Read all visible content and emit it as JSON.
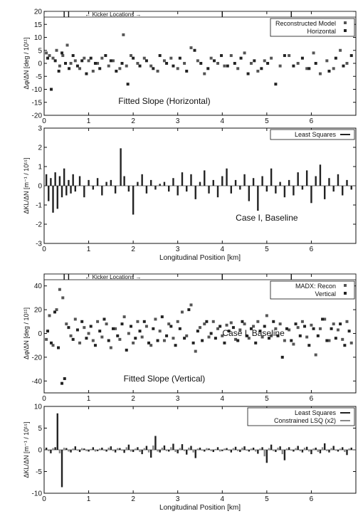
{
  "chart_data": [
    {
      "type": "scatter",
      "ylabel": "Δφ/ΔN [deg / 10¹¹]",
      "ylim": [
        -20,
        20
      ],
      "xlim": [
        0,
        7
      ],
      "yticks": [
        -20,
        -15,
        -10,
        -5,
        0,
        5,
        10,
        15,
        20
      ],
      "xticks": [
        0,
        1,
        2,
        3,
        4,
        5,
        6
      ],
      "kicker_label": "← Kicker Locations →",
      "legend": [
        "Reconstructed Model",
        "Horizontal"
      ],
      "legend_position": "top-right",
      "annotation": "Fitted Slope (Horizontal)",
      "series": [
        {
          "name": "Reconstructed Model",
          "x": [
            0.05,
            0.12,
            0.2,
            0.28,
            0.35,
            0.42,
            0.52,
            0.6,
            0.7,
            0.8,
            0.9,
            1.0,
            1.1,
            1.2,
            1.3,
            1.45,
            1.55,
            1.7,
            1.78,
            1.85,
            1.95,
            2.1,
            2.25,
            2.4,
            2.55,
            2.7,
            2.85,
            3.0,
            3.15,
            3.3,
            3.45,
            3.6,
            3.75,
            3.9,
            4.05,
            4.2,
            4.35,
            4.5,
            4.65,
            4.8,
            4.95,
            5.1,
            5.3,
            5.5,
            5.7,
            5.9,
            6.05,
            6.2,
            6.35,
            6.5,
            6.65,
            6.8
          ],
          "y": [
            4,
            3,
            2,
            5,
            -1,
            3,
            7,
            0,
            1,
            -2,
            2,
            1,
            -3,
            0,
            2,
            -1,
            1,
            -2,
            11,
            -1,
            3,
            0,
            2,
            -1,
            -3,
            1,
            2,
            -2,
            0,
            6,
            1,
            -4,
            2,
            0,
            -1,
            3,
            -2,
            4,
            0,
            -3,
            1,
            2,
            -1,
            3,
            0,
            -2,
            4,
            -4,
            1,
            -2,
            5,
            0
          ]
        },
        {
          "name": "Horizontal",
          "x": [
            0.08,
            0.16,
            0.25,
            0.33,
            0.4,
            0.48,
            0.56,
            0.65,
            0.75,
            0.85,
            0.95,
            1.05,
            1.15,
            1.25,
            1.38,
            1.5,
            1.62,
            1.75,
            1.88,
            2.0,
            2.15,
            2.3,
            2.45,
            2.6,
            2.75,
            2.9,
            3.05,
            3.2,
            3.38,
            3.52,
            3.68,
            3.82,
            3.98,
            4.12,
            4.28,
            4.42,
            4.58,
            4.72,
            4.88,
            5.02,
            5.2,
            5.4,
            5.6,
            5.8,
            5.95,
            6.1,
            6.25,
            6.4,
            6.55,
            6.72,
            6.9
          ],
          "y": [
            2,
            -10,
            1,
            -3,
            4,
            0,
            -2,
            3,
            -1,
            1,
            -4,
            2,
            0,
            -2,
            3,
            1,
            -3,
            0,
            -8,
            2,
            -1,
            1,
            -2,
            3,
            0,
            -1,
            2,
            -3,
            5,
            0,
            -2,
            1,
            3,
            -1,
            0,
            2,
            -4,
            1,
            -2,
            0,
            -8,
            3,
            -1,
            2,
            -2,
            0,
            11,
            -3,
            2,
            -1,
            3
          ]
        }
      ]
    },
    {
      "type": "bar",
      "ylabel": "ΔKL/ΔN [m⁻¹ / 10¹⁵]",
      "ylim": [
        -3,
        3
      ],
      "xlim": [
        0,
        7
      ],
      "yticks": [
        -3,
        -2,
        -1,
        0,
        1,
        2,
        3
      ],
      "xticks": [
        0,
        1,
        2,
        3,
        4,
        5,
        6
      ],
      "xlabel": "Longitudinal Position [km]",
      "legend": [
        "Least Squares"
      ],
      "legend_position": "top-right",
      "annotation": "Case I, Baseline",
      "series": [
        {
          "name": "Least Squares",
          "x": [
            0.05,
            0.1,
            0.15,
            0.2,
            0.25,
            0.3,
            0.35,
            0.4,
            0.45,
            0.5,
            0.55,
            0.6,
            0.65,
            0.7,
            0.8,
            0.9,
            1.0,
            1.1,
            1.2,
            1.3,
            1.4,
            1.5,
            1.6,
            1.72,
            1.8,
            1.9,
            2.0,
            2.1,
            2.2,
            2.3,
            2.4,
            2.5,
            2.6,
            2.7,
            2.8,
            2.9,
            3.0,
            3.1,
            3.2,
            3.3,
            3.4,
            3.5,
            3.6,
            3.7,
            3.8,
            3.9,
            4.0,
            4.1,
            4.2,
            4.3,
            4.4,
            4.5,
            4.6,
            4.7,
            4.8,
            4.9,
            5.0,
            5.1,
            5.2,
            5.3,
            5.4,
            5.5,
            5.6,
            5.7,
            5.8,
            5.9,
            6.0,
            6.1,
            6.2,
            6.3,
            6.4,
            6.5,
            6.6,
            6.7,
            6.8,
            6.9
          ],
          "values": [
            0.6,
            -0.8,
            0.4,
            -1.4,
            0.7,
            -1.2,
            0.5,
            -0.6,
            0.9,
            -0.5,
            0.3,
            -0.4,
            0.6,
            -0.3,
            0.5,
            -0.6,
            0.3,
            -0.2,
            0.4,
            -0.5,
            0.2,
            0.3,
            -0.4,
            1.95,
            0.5,
            -0.3,
            -1.5,
            0.2,
            0.6,
            -0.4,
            0.3,
            -0.2,
            0.1,
            0.2,
            -0.3,
            0.4,
            -0.5,
            0.7,
            -0.3,
            0.6,
            -0.7,
            0.2,
            0.8,
            -0.4,
            0.3,
            -0.6,
            0.5,
            0.9,
            -0.4,
            0.3,
            -0.2,
            0.6,
            -0.8,
            0.4,
            -1.3,
            0.5,
            -0.3,
            0.9,
            -0.4,
            0.2,
            -0.6,
            0.3,
            -0.5,
            0.7,
            -0.2,
            0.8,
            -0.9,
            0.5,
            1.1,
            -0.7,
            0.4,
            -0.3,
            0.6,
            -0.5,
            0.3,
            -0.2
          ]
        }
      ]
    },
    {
      "type": "scatter",
      "ylabel": "Δφ/ΔN [deg / 10¹¹]",
      "ylim": [
        -50,
        50
      ],
      "xlim": [
        0,
        7
      ],
      "yticks": [
        -40,
        -20,
        0,
        20,
        40
      ],
      "xticks": [
        0,
        1,
        2,
        3,
        4,
        5,
        6
      ],
      "kicker_label": "← Kicker Locations →",
      "legend": [
        "MADX: Recon",
        "Vertical"
      ],
      "legend_position": "top-right",
      "annotation": "Fitted Slope (Vertical)",
      "overlay_text": "Case I, Baseline",
      "series": [
        {
          "name": "MADX: Recon",
          "x": [
            0.05,
            0.12,
            0.2,
            0.28,
            0.35,
            0.42,
            0.5,
            0.6,
            0.7,
            0.8,
            0.9,
            1.0,
            1.1,
            1.2,
            1.3,
            1.4,
            1.5,
            1.6,
            1.7,
            1.8,
            1.9,
            2.0,
            2.1,
            2.2,
            2.3,
            2.4,
            2.5,
            2.6,
            2.7,
            2.8,
            2.9,
            3.0,
            3.1,
            3.2,
            3.3,
            3.4,
            3.5,
            3.6,
            3.7,
            3.8,
            3.9,
            4.0,
            4.1,
            4.2,
            4.3,
            4.4,
            4.5,
            4.6,
            4.7,
            4.8,
            4.9,
            5.0,
            5.1,
            5.2,
            5.3,
            5.4,
            5.5,
            5.6,
            5.7,
            5.8,
            5.9,
            6.0,
            6.1,
            6.2,
            6.3,
            6.4,
            6.5,
            6.6,
            6.7,
            6.8,
            6.9
          ],
          "y": [
            -5,
            15,
            -10,
            20,
            37,
            30,
            8,
            -2,
            12,
            -8,
            5,
            0,
            -6,
            10,
            -3,
            8,
            -12,
            4,
            -5,
            14,
            0,
            -8,
            10,
            -3,
            6,
            -10,
            12,
            2,
            -6,
            8,
            -4,
            10,
            18,
            -2,
            24,
            -15,
            5,
            8,
            -3,
            10,
            4,
            -2,
            7,
            9,
            -5,
            3,
            8,
            -4,
            6,
            10,
            -3,
            15,
            -2,
            4,
            8,
            -6,
            3,
            -9,
            5,
            10,
            -3,
            7,
            -18,
            4,
            12,
            -6,
            8,
            3,
            -5,
            10,
            -8
          ]
        },
        {
          "name": "Vertical",
          "x": [
            0.08,
            0.16,
            0.24,
            0.32,
            0.4,
            0.46,
            0.55,
            0.65,
            0.75,
            0.85,
            0.95,
            1.05,
            1.15,
            1.25,
            1.35,
            1.45,
            1.55,
            1.65,
            1.75,
            1.85,
            1.95,
            2.05,
            2.15,
            2.25,
            2.35,
            2.45,
            2.55,
            2.65,
            2.75,
            2.85,
            2.95,
            3.05,
            3.15,
            3.25,
            3.35,
            3.45,
            3.55,
            3.65,
            3.75,
            3.85,
            3.95,
            4.05,
            4.15,
            4.25,
            4.35,
            4.45,
            4.55,
            4.65,
            4.75,
            4.85,
            4.95,
            5.05,
            5.15,
            5.25,
            5.35,
            5.45,
            5.55,
            5.65,
            5.75,
            5.85,
            5.95,
            6.05,
            6.15,
            6.25,
            6.35,
            6.45,
            6.55,
            6.65,
            6.75,
            6.85
          ],
          "y": [
            2,
            -8,
            18,
            -12,
            -42,
            -38,
            5,
            -5,
            3,
            10,
            -4,
            6,
            -10,
            2,
            12,
            -6,
            4,
            -2,
            8,
            -14,
            6,
            -4,
            2,
            10,
            -8,
            4,
            -6,
            14,
            -2,
            6,
            -10,
            4,
            -4,
            20,
            -8,
            2,
            -6,
            10,
            0,
            -4,
            6,
            -8,
            2,
            5,
            -6,
            10,
            -2,
            4,
            -8,
            2,
            6,
            -4,
            10,
            -2,
            -20,
            4,
            -6,
            8,
            -2,
            6,
            -10,
            4,
            -2,
            12,
            -6,
            4,
            -4,
            8,
            -10,
            2
          ]
        }
      ]
    },
    {
      "type": "bar",
      "ylabel": "ΔKL/ΔN [m⁻¹ / 10¹⁵]",
      "ylim": [
        -10,
        10
      ],
      "xlim": [
        0,
        7
      ],
      "yticks": [
        -10,
        -5,
        0,
        5,
        10
      ],
      "xticks": [
        0,
        1,
        2,
        3,
        4,
        5,
        6
      ],
      "xlabel": "Longitudinal Position [km]",
      "legend": [
        "Least Squares",
        "Constrained LSQ (x2)"
      ],
      "legend_position": "top-right",
      "series": [
        {
          "name": "Least Squares",
          "x": [
            0.05,
            0.15,
            0.25,
            0.3,
            0.4,
            0.5,
            0.6,
            0.7,
            0.8,
            0.9,
            1.0,
            1.1,
            1.2,
            1.3,
            1.4,
            1.5,
            1.6,
            1.7,
            1.8,
            1.9,
            2.0,
            2.1,
            2.2,
            2.3,
            2.4,
            2.5,
            2.6,
            2.7,
            2.8,
            2.9,
            3.0,
            3.1,
            3.2,
            3.3,
            3.4,
            3.5,
            3.6,
            3.7,
            3.8,
            3.9,
            4.0,
            4.1,
            4.2,
            4.3,
            4.4,
            4.5,
            4.6,
            4.7,
            4.8,
            4.9,
            5.0,
            5.1,
            5.2,
            5.3,
            5.4,
            5.5,
            5.6,
            5.7,
            5.8,
            5.9,
            6.0,
            6.1,
            6.2,
            6.3,
            6.4,
            6.5,
            6.6,
            6.7,
            6.8,
            6.9
          ],
          "values": [
            0.5,
            -0.8,
            0.6,
            8.4,
            -8.6,
            0.4,
            -0.6,
            0.8,
            -0.5,
            0.3,
            -0.4,
            0.6,
            -0.3,
            0.5,
            -0.4,
            0.8,
            -0.6,
            0.4,
            -0.7,
            1.2,
            -0.5,
            0.6,
            -1.0,
            0.9,
            -1.8,
            3.2,
            -0.6,
            1.0,
            -0.4,
            1.4,
            -0.8,
            1.3,
            -1.1,
            0.9,
            -1.9,
            0.5,
            -0.4,
            0.3,
            -0.5,
            0.6,
            -0.3,
            0.4,
            -0.6,
            0.7,
            -0.5,
            0.8,
            -0.4,
            0.5,
            -0.9,
            0.6,
            -3.0,
            1.2,
            -0.5,
            0.8,
            -2.4,
            0.6,
            -0.4,
            0.9,
            -0.6,
            0.7,
            -1.0,
            0.5,
            -0.8,
            1.5,
            -0.6,
            0.9,
            -0.4,
            0.6,
            -1.2,
            0.5
          ]
        },
        {
          "name": "Constrained LSQ (x2)",
          "x": [
            0.1,
            0.2,
            0.35,
            0.45,
            0.55,
            0.65,
            0.75,
            0.85,
            0.95,
            1.05,
            1.15,
            1.25,
            1.35,
            1.45,
            1.55,
            1.65,
            1.75,
            1.85,
            1.95,
            2.05,
            2.15,
            2.25,
            2.35,
            2.45,
            2.55,
            2.65,
            2.75,
            2.85,
            2.95,
            3.05,
            3.15,
            3.25,
            3.35,
            3.45,
            3.55,
            3.65,
            3.75,
            3.85,
            3.95,
            4.05,
            4.15,
            4.25,
            4.35,
            4.45,
            4.55,
            4.65,
            4.75,
            4.85,
            4.95,
            5.05,
            5.15,
            5.25,
            5.35,
            5.45,
            5.55,
            5.65,
            5.75,
            5.85,
            5.95,
            6.05,
            6.15,
            6.25,
            6.35,
            6.45,
            6.55,
            6.65,
            6.75,
            6.85
          ],
          "values": [
            -0.3,
            0.4,
            -0.8,
            0.5,
            -0.4,
            0.3,
            -0.2,
            0.4,
            -0.3,
            0.2,
            -0.4,
            0.3,
            -0.2,
            0.5,
            -0.3,
            0.4,
            -0.2,
            0.6,
            -0.4,
            0.3,
            -0.5,
            0.4,
            -0.6,
            1.0,
            -0.4,
            0.5,
            -0.3,
            0.6,
            -0.5,
            0.4,
            -0.3,
            0.5,
            -0.6,
            0.3,
            -0.2,
            0.4,
            -0.3,
            0.2,
            -0.4,
            0.3,
            -0.2,
            0.4,
            -0.3,
            0.5,
            -0.2,
            0.3,
            -0.4,
            0.3,
            -1.5,
            0.4,
            -0.3,
            0.5,
            -1.0,
            0.3,
            -0.2,
            0.4,
            -0.3,
            0.5,
            -0.4,
            0.3,
            -0.5,
            0.6,
            -0.3,
            0.4,
            -0.2,
            0.3,
            -0.5,
            0.3
          ]
        }
      ]
    }
  ]
}
